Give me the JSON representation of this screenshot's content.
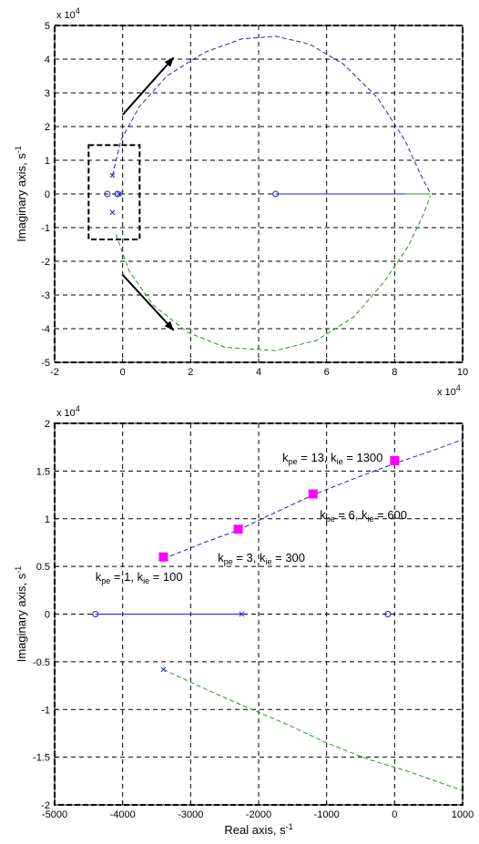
{
  "chart_data": [
    {
      "type": "line",
      "title": "",
      "xlabel": "",
      "ylabel": "Imaginary axis, s",
      "ylabel_sup": "-1",
      "xlim": [
        -2,
        10
      ],
      "ylim": [
        -5,
        5
      ],
      "x_multiplier": "x 10",
      "x_multiplier_exp": "4",
      "y_multiplier": "x 10",
      "y_multiplier_exp": "4",
      "xticks": [
        -2,
        0,
        2,
        4,
        6,
        8,
        10
      ],
      "yticks": [
        -5,
        -4,
        -3,
        -2,
        -1,
        0,
        1,
        2,
        3,
        4,
        5
      ],
      "grid": true,
      "series": [
        {
          "color": "#1f1fd0",
          "style": "dashed",
          "points": [
            [
              -0.3,
              0.55
            ],
            [
              -0.05,
              1.6
            ],
            [
              0.5,
              2.6
            ],
            [
              1.3,
              3.5
            ],
            [
              2.4,
              4.2
            ],
            [
              3.5,
              4.6
            ],
            [
              4.5,
              4.68
            ],
            [
              5.5,
              4.45
            ],
            [
              6.5,
              3.85
            ],
            [
              7.5,
              2.85
            ],
            [
              8.3,
              1.6
            ],
            [
              8.8,
              0.5
            ],
            [
              9.05,
              0.02
            ]
          ]
        },
        {
          "color": "#1f9a1f",
          "style": "dashed",
          "points": [
            [
              -0.2,
              -1.2
            ],
            [
              0.2,
              -2.3
            ],
            [
              0.9,
              -3.3
            ],
            [
              1.9,
              -4.1
            ],
            [
              3.0,
              -4.55
            ],
            [
              4.5,
              -4.65
            ],
            [
              5.7,
              -4.35
            ],
            [
              6.8,
              -3.65
            ],
            [
              7.7,
              -2.6
            ],
            [
              8.4,
              -1.55
            ],
            [
              8.85,
              -0.6
            ],
            [
              9.05,
              -0.05
            ]
          ]
        },
        {
          "color": "#1f1fd0",
          "style": "solid",
          "points": [
            [
              4.5,
              0
            ],
            [
              9.05,
              0
            ]
          ]
        },
        {
          "color": "#1f9a1f",
          "style": "solid",
          "points": [
            [
              8.3,
              0
            ],
            [
              9.05,
              0
            ]
          ]
        }
      ],
      "poles": [
        [
          -0.3,
          0.55
        ],
        [
          -0.3,
          -0.55
        ],
        [
          -0.1,
          0
        ]
      ],
      "zeros": [
        [
          4.5,
          0
        ],
        [
          -0.45,
          0
        ],
        [
          -0.15,
          0
        ]
      ],
      "zoom_box": {
        "x": [
          -1.0,
          0.5
        ],
        "y": [
          -1.35,
          1.45
        ]
      },
      "arrows": [
        {
          "from": [
            0.0,
            2.35
          ],
          "to": [
            1.5,
            4.05
          ]
        },
        {
          "from": [
            0.0,
            -2.4
          ],
          "to": [
            1.5,
            -4.05
          ]
        }
      ]
    },
    {
      "type": "line",
      "title": "",
      "xlabel": "Real axis, s",
      "xlabel_sup": "-1",
      "ylabel": "Imaginary axis, s",
      "ylabel_sup": "-1",
      "xlim": [
        -5000,
        1000
      ],
      "ylim": [
        -2,
        2
      ],
      "y_multiplier": "x 10",
      "y_multiplier_exp": "4",
      "xticks": [
        -5000,
        -4000,
        -3000,
        -2000,
        -1000,
        0,
        1000
      ],
      "yticks": [
        -2,
        -1.5,
        -1,
        -0.5,
        0,
        0.5,
        1,
        1.5,
        2
      ],
      "grid": true,
      "series": [
        {
          "color": "#1f1fd0",
          "style": "dashed",
          "points": [
            [
              -3400,
              0.58
            ],
            [
              -2800,
              0.75
            ],
            [
              -2300,
              0.88
            ],
            [
              -1800,
              1.05
            ],
            [
              -1200,
              1.25
            ],
            [
              -600,
              1.42
            ],
            [
              0,
              1.58
            ],
            [
              500,
              1.7
            ],
            [
              1000,
              1.83
            ]
          ]
        },
        {
          "color": "#1f9a1f",
          "style": "dashed",
          "points": [
            [
              -3400,
              -0.58
            ],
            [
              -2800,
              -0.78
            ],
            [
              -2200,
              -0.97
            ],
            [
              -1600,
              -1.15
            ],
            [
              -1000,
              -1.35
            ],
            [
              -400,
              -1.52
            ],
            [
              200,
              -1.65
            ],
            [
              600,
              -1.75
            ],
            [
              1000,
              -1.85
            ]
          ]
        },
        {
          "color": "#e03030",
          "style": "dashed",
          "points": [
            [
              -4400,
              0
            ],
            [
              -2250,
              0
            ]
          ]
        },
        {
          "color": "#1f1fd0",
          "style": "solid",
          "points": [
            [
              -4400,
              0
            ],
            [
              -2250,
              0
            ]
          ]
        }
      ],
      "poles": [
        [
          -3400,
          -0.58
        ],
        [
          -2250,
          0
        ]
      ],
      "zeros": [
        [
          -4400,
          0
        ],
        [
          -100,
          0
        ]
      ],
      "markers": [
        {
          "x": -3400,
          "y": 0.6,
          "color": "#ff00ff"
        },
        {
          "x": -2300,
          "y": 0.89,
          "color": "#ff00ff"
        },
        {
          "x": -1200,
          "y": 1.26,
          "color": "#ff00ff"
        },
        {
          "x": 0,
          "y": 1.61,
          "color": "#ff00ff"
        }
      ],
      "annotations": [
        {
          "k": "k",
          "pe": "pe",
          "eq1": " = 1, ",
          "ie": "ie",
          "val": " = 100",
          "x": -4400,
          "y": 0.35
        },
        {
          "k": "k",
          "pe": "pe",
          "eq1": " = 3, ",
          "ie": "ie",
          "val": " = 300",
          "x": -2600,
          "y": 0.55
        },
        {
          "k": "k",
          "pe": "pe",
          "eq1": " = 6, ",
          "ie": "ie",
          "val": " = 600",
          "x": -1100,
          "y": 1.0
        },
        {
          "k": "k",
          "pe": "pe",
          "eq1": " = 13, ",
          "ie": "ie",
          "val": " = 1300",
          "x": -1650,
          "y": 1.6
        }
      ]
    }
  ]
}
